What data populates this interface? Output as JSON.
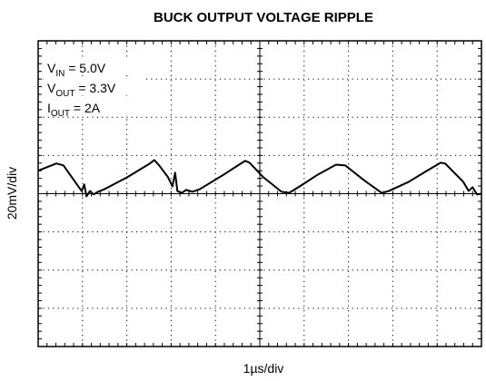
{
  "chart_data": {
    "type": "line",
    "title": "BUCK OUTPUT VOLTAGE RIPPLE",
    "x_label": "1µs/div",
    "y_label": "20mV/div",
    "annotations": [
      {
        "base": "V",
        "sub": "IN",
        "rest": " = 5.0V"
      },
      {
        "base": "V",
        "sub": "OUT",
        "rest": " = 3.3V"
      },
      {
        "base": "I",
        "sub": "OUT",
        "rest": " = 2A"
      }
    ],
    "xlim": [
      0,
      10
    ],
    "ylim": [
      -4,
      4
    ],
    "xticks": [
      0,
      1,
      2,
      3,
      4,
      5,
      6,
      7,
      8,
      9,
      10
    ],
    "yticks": [
      -4,
      -3,
      -2,
      -1,
      0,
      1,
      2,
      3,
      4
    ],
    "grid": true,
    "series": [
      {
        "color": "#000000",
        "x": [
          0,
          0.41,
          0.57,
          0.98,
          1.04,
          1.09,
          1.17,
          1.25,
          1.35,
          1.5,
          2.01,
          2.52,
          2.62,
          2.73,
          2.93,
          3.03,
          3.09,
          3.14,
          3.24,
          3.34,
          3.48,
          3.65,
          4.16,
          4.67,
          4.77,
          5.08,
          5.49,
          5.66,
          5.9,
          6.31,
          6.72,
          6.93,
          7.34,
          7.75,
          7.91,
          8.36,
          8.77,
          9.08,
          9.18,
          9.59,
          9.71,
          9.8,
          9.9,
          10
        ],
        "values": [
          0.6,
          0.79,
          0.74,
          0.07,
          0.24,
          -0.07,
          0.07,
          -0.02,
          0.05,
          0.12,
          0.43,
          0.79,
          0.88,
          0.74,
          0.43,
          0.19,
          0.55,
          0.07,
          0.02,
          0.1,
          0.05,
          0.12,
          0.48,
          0.86,
          0.81,
          0.43,
          0.05,
          0.02,
          0.19,
          0.5,
          0.76,
          0.74,
          0.36,
          0.02,
          0.07,
          0.31,
          0.6,
          0.81,
          0.79,
          0.31,
          0.07,
          0.17,
          -0.02,
          0
        ]
      }
    ]
  }
}
